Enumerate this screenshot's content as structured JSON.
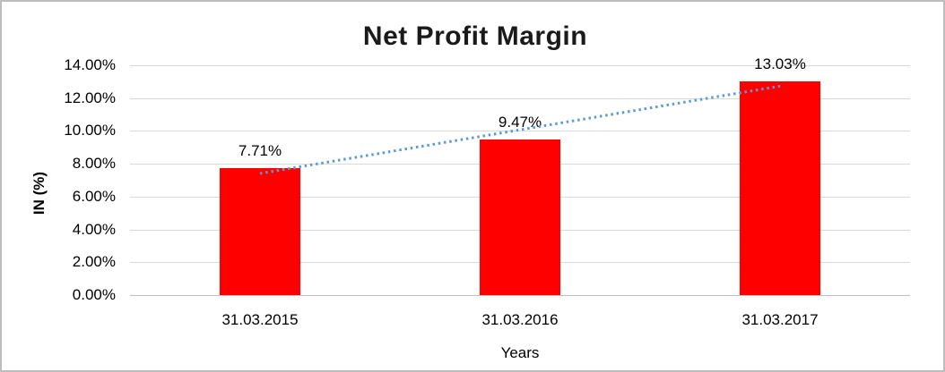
{
  "chart_data": {
    "type": "bar",
    "title": "Net Profit Margin",
    "xlabel": "Years",
    "ylabel": "IN (%)",
    "categories": [
      "31.03.2015",
      "31.03.2016",
      "31.03.2017"
    ],
    "values": [
      7.71,
      9.47,
      13.03
    ],
    "data_labels": [
      "7.71%",
      "9.47%",
      "13.03%"
    ],
    "ylim": [
      0,
      14
    ],
    "ytick_values": [
      0,
      2,
      4,
      6,
      8,
      10,
      12,
      14
    ],
    "ytick_labels": [
      "0.00%",
      "2.00%",
      "4.00%",
      "6.00%",
      "8.00%",
      "10.00%",
      "12.00%",
      "14.00%"
    ],
    "grid": true,
    "legend": "none",
    "bar_color": "#ff0000",
    "gridline_color": "#d9d9d9",
    "axis_line_color": "#bfbfbf",
    "trendline": {
      "type": "linear",
      "style": "dotted",
      "color": "#5b9bd5"
    }
  }
}
